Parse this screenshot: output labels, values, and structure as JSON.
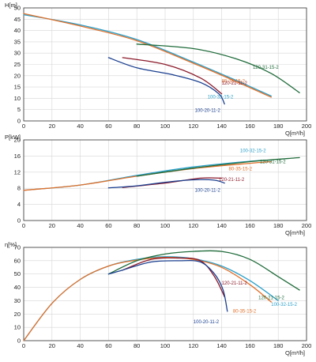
{
  "colors": {
    "100-20-11-2": "#1a3f8f",
    "120-21-11-2": "#8b1a2a",
    "100-32-15-2": "#2a9fc9",
    "80-35-15-2": "#e0702a",
    "120-31-15-2": "#1f6b3a",
    "120-21-15-2": "#1f6b3a"
  },
  "chart_data": [
    {
      "type": "line",
      "ylabel": "H[m]",
      "xlabel": "Q[m³/h]",
      "xlim": [
        0,
        200
      ],
      "ylim": [
        0,
        50
      ],
      "xticks": [
        "0",
        "20",
        "40",
        "60",
        "80",
        "100",
        "120",
        "140",
        "160",
        "180",
        "200"
      ],
      "yticks": [
        "0",
        "5",
        "10",
        "15",
        "20",
        "25",
        "30",
        "35",
        "40",
        "45",
        "50"
      ],
      "grid": true,
      "series": [
        {
          "name": "100-32-15-2",
          "points": [
            [
              0,
              47
            ],
            [
              40,
              42.5
            ],
            [
              80,
              36
            ],
            [
              120,
              26
            ],
            [
              150,
              18
            ],
            [
              175,
              11
            ]
          ],
          "label_at": [
            130,
            10
          ]
        },
        {
          "name": "80-35-15-2",
          "points": [
            [
              0,
              47.5
            ],
            [
              40,
              42
            ],
            [
              80,
              35.5
            ],
            [
              120,
              25.5
            ],
            [
              150,
              17.5
            ],
            [
              175,
              10.5
            ]
          ],
          "label_at": [
            140,
            17
          ]
        },
        {
          "name": "120-31-15-2",
          "points": [
            [
              80,
              34
            ],
            [
              120,
              32
            ],
            [
              150,
              27.5
            ],
            [
              175,
              21
            ],
            [
              195,
              12.5
            ]
          ],
          "label_at": [
            162,
            23
          ]
        },
        {
          "name": "120-21-11-2",
          "points": [
            [
              70,
              28
            ],
            [
              100,
              25
            ],
            [
              125,
              19
            ],
            [
              140,
              12
            ]
          ],
          "label_at": [
            140,
            16
          ]
        },
        {
          "name": "100-20-11-2",
          "points": [
            [
              60,
              28
            ],
            [
              80,
              23.5
            ],
            [
              105,
              20.5
            ],
            [
              125,
              17
            ],
            [
              138,
              12
            ],
            [
              142,
              7.5
            ]
          ],
          "label_at": [
            121,
            4
          ]
        }
      ]
    },
    {
      "type": "line",
      "ylabel": "P[kW]",
      "xlabel": "Q[m³/h]",
      "xlim": [
        0,
        200
      ],
      "ylim": [
        0,
        20
      ],
      "xticks": [
        "0",
        "20",
        "40",
        "60",
        "80",
        "100",
        "120",
        "140",
        "160",
        "180",
        "200"
      ],
      "yticks": [
        "0",
        "4",
        "8",
        "12",
        "16",
        "20"
      ],
      "grid": true,
      "series": [
        {
          "name": "100-32-15-2",
          "points": [
            [
              0,
              7.5
            ],
            [
              40,
              8.8
            ],
            [
              80,
              11.2
            ],
            [
              120,
              13.3
            ],
            [
              160,
              14.7
            ],
            [
              175,
              15
            ]
          ],
          "label_at": [
            153,
            17
          ]
        },
        {
          "name": "80-35-15-2",
          "points": [
            [
              0,
              7.5
            ],
            [
              40,
              8.8
            ],
            [
              80,
              11
            ],
            [
              120,
              12.9
            ],
            [
              160,
              14.2
            ],
            [
              175,
              14.6
            ]
          ],
          "label_at": [
            145,
            12.5
          ]
        },
        {
          "name": "120-31-15-2",
          "points": [
            [
              80,
              11
            ],
            [
              120,
              13
            ],
            [
              160,
              14.6
            ],
            [
              195,
              15.6
            ]
          ],
          "label_at": [
            167,
            14.2
          ]
        },
        {
          "name": "120-21-11-2",
          "points": [
            [
              70,
              8.2
            ],
            [
              100,
              9.3
            ],
            [
              125,
              10.5
            ],
            [
              140,
              10.5
            ]
          ],
          "label_at": [
            138,
            9.8
          ]
        },
        {
          "name": "100-20-11-2",
          "points": [
            [
              60,
              8.1
            ],
            [
              80,
              8.6
            ],
            [
              100,
              9.5
            ],
            [
              120,
              10.1
            ],
            [
              135,
              10
            ],
            [
              142,
              9.3
            ]
          ],
          "label_at": [
            121,
            7.2
          ]
        }
      ]
    },
    {
      "type": "line",
      "ylabel": "η[%]",
      "xlabel": "Q[m³/h]",
      "xlim": [
        0,
        200
      ],
      "ylim": [
        0,
        70
      ],
      "xticks": [
        "0",
        "20",
        "40",
        "60",
        "80",
        "100",
        "120",
        "140",
        "160",
        "180",
        "200"
      ],
      "yticks": [
        "0",
        "10",
        "20",
        "30",
        "40",
        "50",
        "60",
        "70"
      ],
      "grid": true,
      "series": [
        {
          "name": "100-32-15-2",
          "points": [
            [
              0,
              0
            ],
            [
              20,
              28
            ],
            [
              40,
              46
            ],
            [
              60,
              56
            ],
            [
              80,
              61
            ],
            [
              100,
              63
            ],
            [
              120,
              61.5
            ],
            [
              140,
              56
            ],
            [
              160,
              45
            ],
            [
              180,
              30
            ]
          ],
          "label_at": [
            175,
            26
          ]
        },
        {
          "name": "80-35-15-2",
          "points": [
            [
              0,
              0
            ],
            [
              20,
              28
            ],
            [
              40,
              46
            ],
            [
              60,
              56
            ],
            [
              80,
              60.5
            ],
            [
              100,
              62.5
            ],
            [
              120,
              61
            ],
            [
              140,
              55
            ],
            [
              160,
              42
            ],
            [
              175,
              29
            ]
          ],
          "label_at": [
            148,
            21
          ]
        },
        {
          "name": "120-21-15-2",
          "points": [
            [
              60,
              50
            ],
            [
              80,
              60
            ],
            [
              100,
              65
            ],
            [
              120,
              67
            ],
            [
              140,
              67
            ],
            [
              160,
              61
            ],
            [
              180,
              48
            ],
            [
              195,
              38
            ]
          ],
          "label_at": [
            166,
            31
          ]
        },
        {
          "name": "120-21-11-2",
          "points": [
            [
              70,
              53
            ],
            [
              90,
              61
            ],
            [
              110,
              62
            ],
            [
              125,
              60
            ],
            [
              135,
              48
            ],
            [
              142,
              33
            ]
          ],
          "label_at": [
            140,
            42
          ]
        },
        {
          "name": "100-20-11-2",
          "points": [
            [
              60,
              50
            ],
            [
              70,
              53
            ],
            [
              90,
              59
            ],
            [
              110,
              60
            ],
            [
              125,
              59
            ],
            [
              135,
              50
            ],
            [
              141,
              38
            ],
            [
              144,
              22
            ]
          ],
          "label_at": [
            120,
            13
          ]
        }
      ]
    }
  ]
}
